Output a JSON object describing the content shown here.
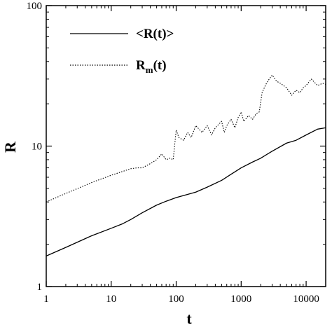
{
  "chart_data": {
    "type": "line",
    "xlabel": "t",
    "ylabel": "R",
    "xscale": "log",
    "yscale": "log",
    "xlim": [
      1,
      20000
    ],
    "ylim": [
      1,
      100
    ],
    "x_ticks": [
      1,
      10,
      100,
      1000,
      10000
    ],
    "x_tick_labels": [
      "1",
      "10",
      "100",
      "1000",
      "10000"
    ],
    "y_ticks": [
      1,
      10,
      100
    ],
    "y_tick_labels": [
      "1",
      "10",
      "100"
    ],
    "grid": false,
    "legend_position": "top-left",
    "series": [
      {
        "name": "<R(t)>",
        "legend_text": "<R(t)>",
        "style": "solid",
        "color": "#000000",
        "x": [
          1,
          2,
          5,
          10,
          15,
          20,
          30,
          50,
          70,
          100,
          200,
          300,
          500,
          700,
          1000,
          1500,
          2000,
          3000,
          5000,
          7000,
          10000,
          15000,
          20000
        ],
        "y": [
          1.65,
          1.9,
          2.3,
          2.6,
          2.8,
          3.0,
          3.35,
          3.8,
          4.05,
          4.3,
          4.7,
          5.1,
          5.7,
          6.3,
          7.0,
          7.7,
          8.2,
          9.2,
          10.5,
          11.0,
          12.0,
          13.2,
          13.5
        ]
      },
      {
        "name": "Rm(t)",
        "legend_text": "R",
        "legend_subscript": "m",
        "legend_suffix": "(t)",
        "style": "dotted",
        "color": "#000000",
        "x": [
          1,
          2,
          5,
          10,
          15,
          20,
          25,
          30,
          40,
          50,
          60,
          70,
          80,
          90,
          100,
          110,
          130,
          150,
          170,
          200,
          250,
          300,
          350,
          400,
          500,
          550,
          600,
          700,
          800,
          900,
          1000,
          1100,
          1300,
          1500,
          1700,
          1900,
          2100,
          2400,
          2700,
          3000,
          3500,
          4000,
          5000,
          6000,
          7000,
          8000,
          9000,
          10000,
          12000,
          15000,
          18000,
          20000
        ],
        "y": [
          4.0,
          4.6,
          5.5,
          6.2,
          6.6,
          6.9,
          7.0,
          7.0,
          7.5,
          8.0,
          8.8,
          8.0,
          8.2,
          8.0,
          13.0,
          11.5,
          11.0,
          12.5,
          11.5,
          14.0,
          12.5,
          14.0,
          12.0,
          13.5,
          15.0,
          12.5,
          14.0,
          15.5,
          13.5,
          16.0,
          17.5,
          15.0,
          16.5,
          15.5,
          17.0,
          17.5,
          24.0,
          27.5,
          30.0,
          32.0,
          29.0,
          28.0,
          26.0,
          23.0,
          25.0,
          24.0,
          26.0,
          27.0,
          30.0,
          27.0,
          28.0,
          27.5
        ]
      }
    ]
  }
}
